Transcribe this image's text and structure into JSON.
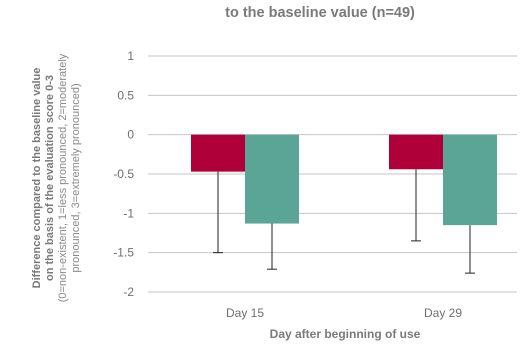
{
  "chart_data": {
    "type": "bar",
    "title": "to the baseline value (n=49)",
    "ylabel": "Difference compared to the baseline value",
    "ylabel_line2": "on the basis of the evaluation score 0-3",
    "ylabel_line3": "(0=non-existent, 1=less pronounced, 2=moderately",
    "ylabel_line4": "pronounced, 3=extremely pronounced)",
    "xlabel": "Day after beginning of use",
    "categories": [
      "Day 15",
      "Day 29"
    ],
    "ylim": [
      -2,
      1
    ],
    "yticks": [
      1,
      0.5,
      0,
      -0.5,
      -1,
      -1.5,
      -2
    ],
    "ytick_labels": [
      "1",
      "0.5",
      "0",
      "-0.5",
      "-1",
      "-1.5",
      "-2"
    ],
    "grid": true,
    "series": [
      {
        "color": "#b0003a",
        "values": [
          -0.47,
          -0.44
        ],
        "error_low": [
          -1.5,
          -1.35
        ]
      },
      {
        "color": "#5ba596",
        "values": [
          -1.13,
          -1.15
        ],
        "error_low": [
          -1.71,
          -1.76
        ]
      }
    ]
  }
}
